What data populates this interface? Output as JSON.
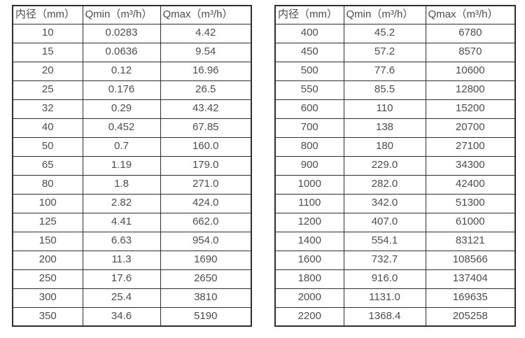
{
  "colors": {
    "border": "#2e2e2e",
    "text": "#4d4d4d",
    "background": "#ffffff"
  },
  "tables": [
    {
      "name": "small-diameter-flow-spec",
      "headers": [
        "内径（mm）",
        "Qmin（m³/h）",
        "Qmax（m³/h）"
      ],
      "rows": [
        [
          "10",
          "0.0283",
          "4.42"
        ],
        [
          "15",
          "0.0636",
          "9.54"
        ],
        [
          "20",
          "0.12",
          "16.96"
        ],
        [
          "25",
          "0.176",
          "26.5"
        ],
        [
          "32",
          "0.29",
          "43.42"
        ],
        [
          "40",
          "0.452",
          "67.85"
        ],
        [
          "50",
          "0.7",
          "160.0"
        ],
        [
          "65",
          "1.19",
          "179.0"
        ],
        [
          "80",
          "1.8",
          "271.0"
        ],
        [
          "100",
          "2.82",
          "424.0"
        ],
        [
          "125",
          "4.41",
          "662.0"
        ],
        [
          "150",
          "6.63",
          "954.0"
        ],
        [
          "200",
          "11.3",
          "1690"
        ],
        [
          "250",
          "17.6",
          "2650"
        ],
        [
          "300",
          "25.4",
          "3810"
        ],
        [
          "350",
          "34.6",
          "5190"
        ]
      ]
    },
    {
      "name": "large-diameter-flow-spec",
      "headers": [
        "内径（mm）",
        "Qmin（m³/h）",
        "Qmax（m³/h）"
      ],
      "rows": [
        [
          "400",
          "45.2",
          "6780"
        ],
        [
          "450",
          "57.2",
          "8570"
        ],
        [
          "500",
          "77.6",
          "10600"
        ],
        [
          "550",
          "85.5",
          "12800"
        ],
        [
          "600",
          "110",
          "15200"
        ],
        [
          "700",
          "138",
          "20700"
        ],
        [
          "800",
          "180",
          "27100"
        ],
        [
          "900",
          "229.0",
          "34300"
        ],
        [
          "1000",
          "282.0",
          "42400"
        ],
        [
          "1100",
          "342.0",
          "51300"
        ],
        [
          "1200",
          "407.0",
          "61000"
        ],
        [
          "1400",
          "554.1",
          "83121"
        ],
        [
          "1600",
          "732.7",
          "108566"
        ],
        [
          "1800",
          "916.0",
          "137404"
        ],
        [
          "2000",
          "1131.0",
          "169635"
        ],
        [
          "2200",
          "1368.4",
          "205258"
        ]
      ]
    }
  ]
}
